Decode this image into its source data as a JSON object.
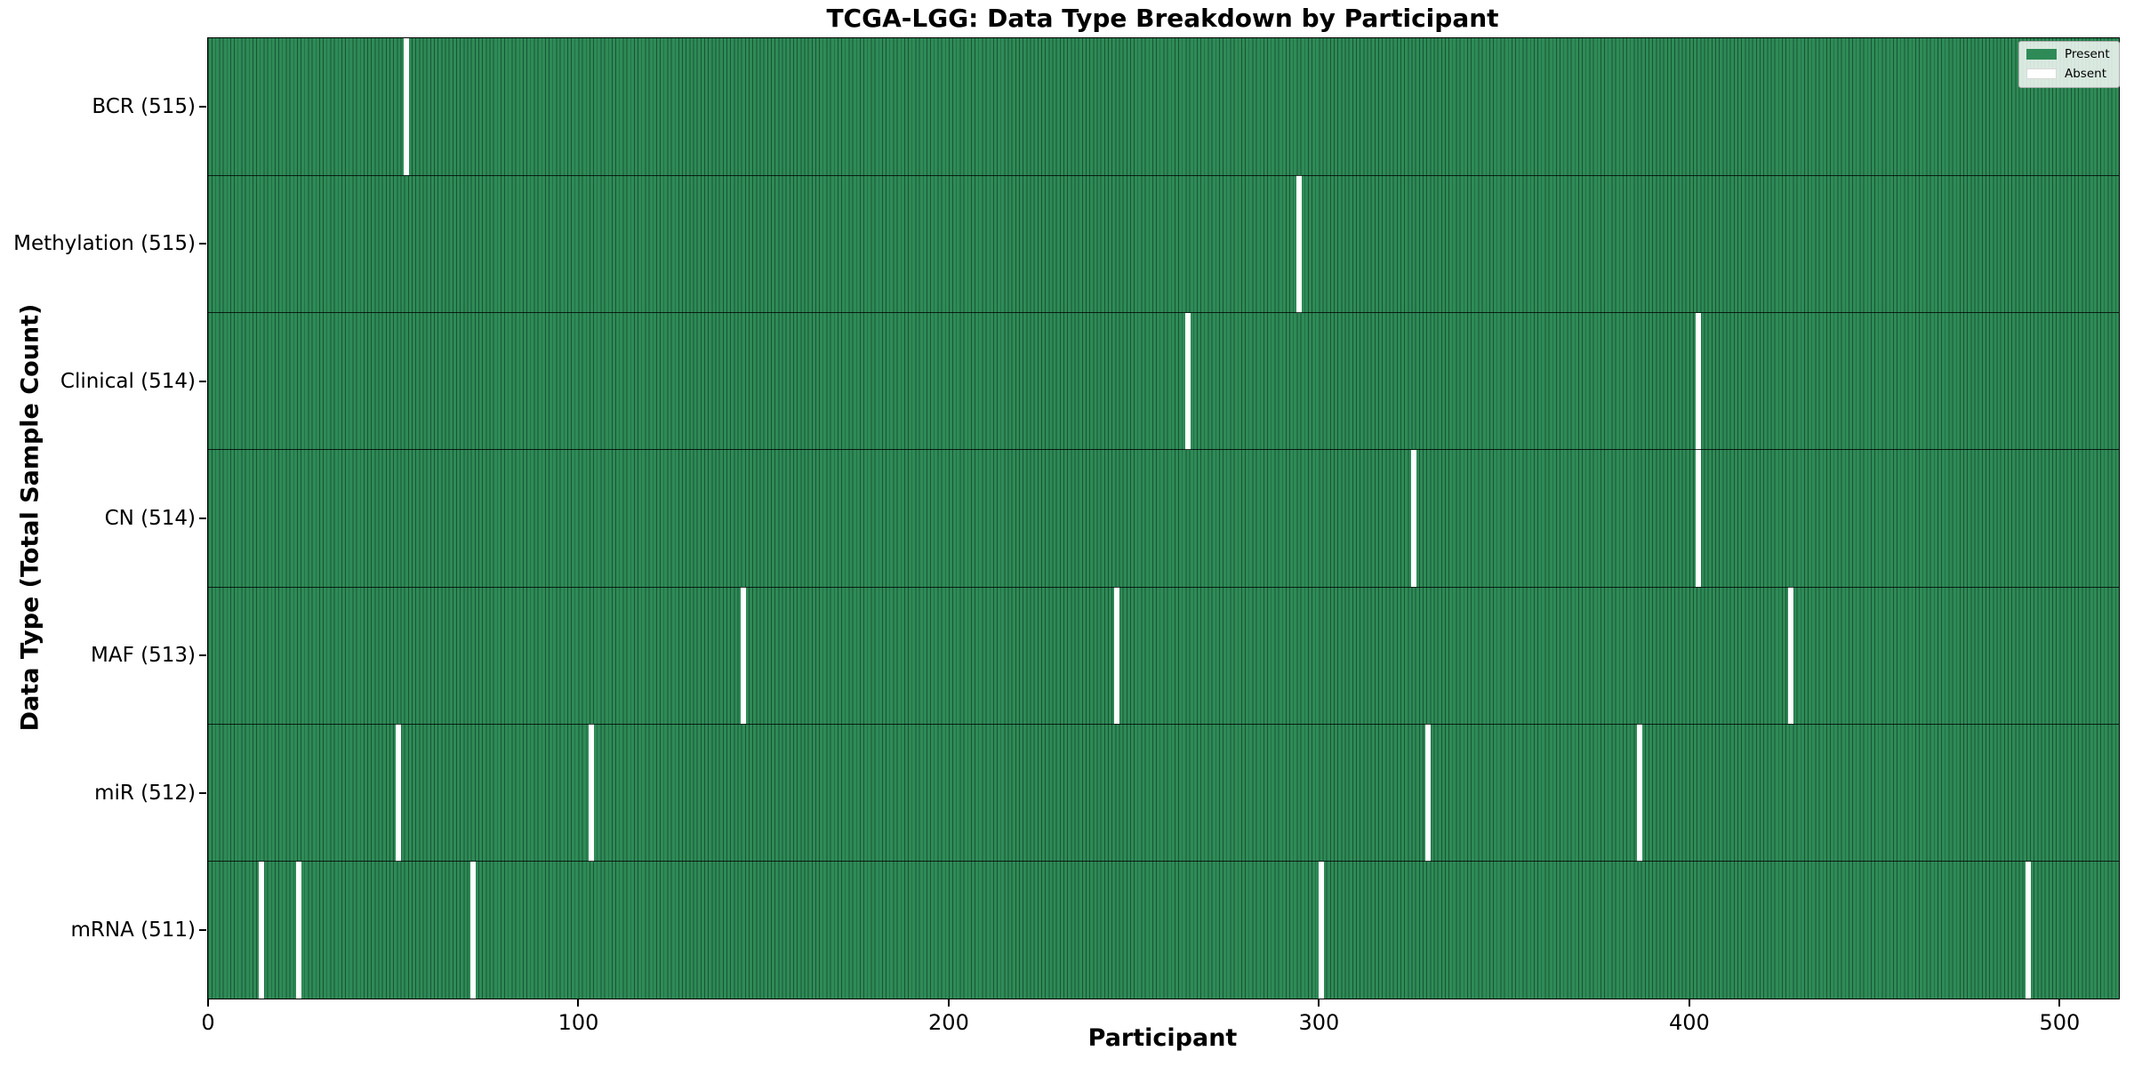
{
  "figure": {
    "title": "TCGA-LGG: Data Type Breakdown by Participant",
    "xlabel": "Participant",
    "ylabel": "Data Type (Total Sample Count)"
  },
  "legend": {
    "items": [
      {
        "label": "Present",
        "color": "#2E8B57"
      },
      {
        "label": "Absent",
        "color": "#FFFFFF"
      }
    ]
  },
  "chart_data": {
    "type": "heatmap",
    "title": "TCGA-LGG: Data Type Breakdown by Participant",
    "xlabel": "Participant",
    "ylabel": "Data Type (Total Sample Count)",
    "legend_entries": [
      "Present",
      "Absent"
    ],
    "legend_position": "upper right",
    "grid": false,
    "xlim": [
      0,
      516
    ],
    "x_ticks": [
      0,
      100,
      200,
      300,
      400,
      500
    ],
    "total_participants": 516,
    "present_color": "#2E8B57",
    "absent_color": "#FFFFFF",
    "bar_edge_color": "#1B5434",
    "rows": [
      {
        "data_type": "BCR",
        "label": "BCR (515)",
        "count": 515,
        "absent_participants": [
          53
        ]
      },
      {
        "data_type": "Methylation",
        "label": "Methylation (515)",
        "count": 515,
        "absent_participants": [
          294
        ]
      },
      {
        "data_type": "Clinical",
        "label": "Clinical (514)",
        "count": 514,
        "absent_participants": [
          264,
          402
        ]
      },
      {
        "data_type": "CN",
        "label": "CN (514)",
        "count": 514,
        "absent_participants": [
          325,
          402
        ]
      },
      {
        "data_type": "MAF",
        "label": "MAF (513)",
        "count": 513,
        "absent_participants": [
          144,
          245,
          427
        ]
      },
      {
        "data_type": "miR",
        "label": "miR (512)",
        "count": 512,
        "absent_participants": [
          51,
          103,
          329,
          386
        ]
      },
      {
        "data_type": "mRNA",
        "label": "mRNA (511)",
        "count": 511,
        "absent_participants": [
          14,
          24,
          71,
          300,
          491
        ]
      }
    ]
  }
}
